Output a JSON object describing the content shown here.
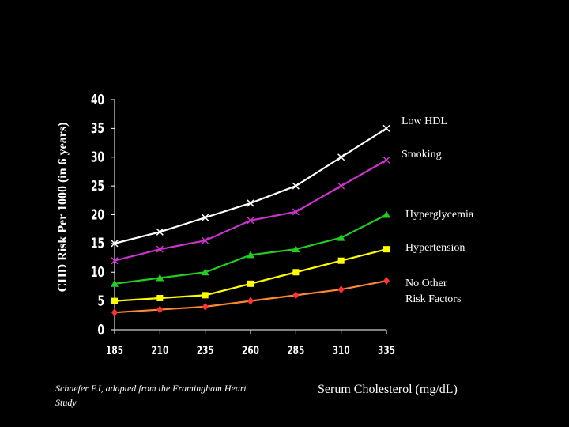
{
  "chart_data": {
    "type": "line",
    "ylabel": "CHD Risk Per 1000 (in 6 years)",
    "xlabel": "Serum Cholesterol (mg/dL)",
    "source_note": "Schaefer EJ, adapted from the Framingham Heart Study",
    "x": [
      185,
      210,
      235,
      260,
      285,
      310,
      335
    ],
    "xticks": [
      "185",
      "210",
      "235",
      "260",
      "285",
      "310",
      "335"
    ],
    "yticks": [
      "0",
      "5",
      "10",
      "15",
      "20",
      "25",
      "30",
      "35",
      "40"
    ],
    "ylim": [
      0,
      40
    ],
    "grid": false,
    "series": [
      {
        "name": "Low HDL",
        "color": "#ffffff",
        "marker": "x",
        "values": [
          15,
          17,
          19.5,
          22,
          25,
          30,
          35
        ]
      },
      {
        "name": "Smoking",
        "color": "#cc33cc",
        "marker": "x",
        "values": [
          12,
          14,
          15.5,
          19,
          20.5,
          25,
          29.5
        ]
      },
      {
        "name": "Hyperglycemia",
        "color": "#22cc22",
        "marker": "triangle",
        "values": [
          8,
          9,
          10,
          13,
          14,
          16,
          20
        ]
      },
      {
        "name": "Hypertension",
        "color": "#ffff00",
        "marker": "square",
        "values": [
          5,
          5.5,
          6,
          8,
          10,
          12,
          14
        ]
      },
      {
        "name": "No Other\nRisk Factors",
        "color": "#ff8833",
        "marker": "diamond",
        "values": [
          3,
          3.5,
          4,
          5,
          6,
          7,
          8.5
        ]
      }
    ]
  }
}
